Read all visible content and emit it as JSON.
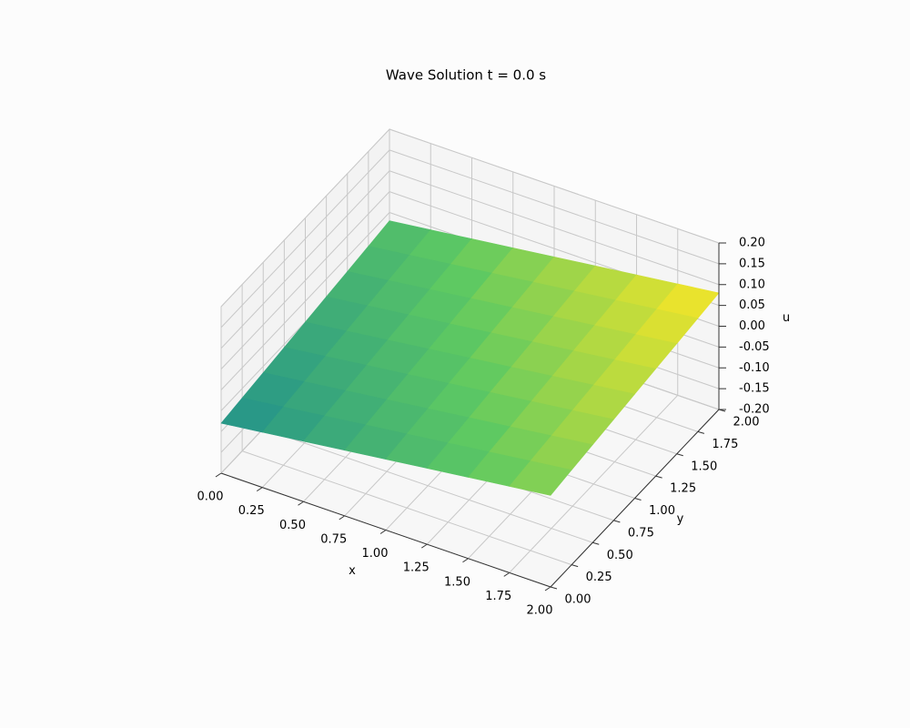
{
  "chart_data": {
    "type": "surface3d",
    "title": "Wave Solution t = 0.0 s",
    "xlabel": "x",
    "ylabel": "y",
    "zlabel": "u",
    "x": [
      0,
      0.25,
      0.5,
      0.75,
      1,
      1.25,
      1.5,
      1.75,
      2
    ],
    "y": [
      0,
      0.25,
      0.5,
      0.75,
      1,
      1.25,
      1.5,
      1.75,
      2
    ],
    "z": [
      [
        -0.08,
        -0.0675,
        -0.055,
        -0.0425,
        -0.03,
        -0.0175,
        -0.005,
        0.0075,
        0.02
      ],
      [
        -0.0725,
        -0.06,
        -0.0475,
        -0.035,
        -0.0225,
        -0.01,
        0.0025,
        0.015,
        0.0275
      ],
      [
        -0.065,
        -0.0525,
        -0.04,
        -0.0275,
        -0.015,
        -0.0025,
        0.01,
        0.0225,
        0.035
      ],
      [
        -0.0575,
        -0.045,
        -0.0325,
        -0.02,
        -0.0075,
        0.005,
        0.0175,
        0.03,
        0.0425
      ],
      [
        -0.05,
        -0.0375,
        -0.025,
        -0.0125,
        0,
        0.0125,
        0.025,
        0.0375,
        0.05
      ],
      [
        -0.0425,
        -0.03,
        -0.0175,
        -0.005,
        0.0075,
        0.02,
        0.0325,
        0.045,
        0.0575
      ],
      [
        -0.035,
        -0.0225,
        -0.01,
        0.0025,
        0.015,
        0.0275,
        0.04,
        0.0525,
        0.065
      ],
      [
        -0.0275,
        -0.015,
        -0.0025,
        0.01,
        0.0225,
        0.035,
        0.0475,
        0.06,
        0.0725
      ],
      [
        -0.02,
        -0.0075,
        0.005,
        0.0175,
        0.03,
        0.0425,
        0.055,
        0.0675,
        0.08
      ]
    ],
    "colormap": [
      "#21918c",
      "#5ec962",
      "#fde725"
    ],
    "xlim": [
      0,
      2
    ],
    "ylim": [
      0,
      2
    ],
    "zlim": [
      -0.2,
      0.2
    ],
    "xticks": [
      {
        "value": 0,
        "label": "0.00"
      },
      {
        "value": 0.25,
        "label": "0.25"
      },
      {
        "value": 0.5,
        "label": "0.50"
      },
      {
        "value": 0.75,
        "label": "0.75"
      },
      {
        "value": 1,
        "label": "1.00"
      },
      {
        "value": 1.25,
        "label": "1.25"
      },
      {
        "value": 1.5,
        "label": "1.50"
      },
      {
        "value": 1.75,
        "label": "1.75"
      },
      {
        "value": 2,
        "label": "2.00"
      }
    ],
    "yticks": [
      {
        "value": 0,
        "label": "0.00"
      },
      {
        "value": 0.25,
        "label": "0.25"
      },
      {
        "value": 0.5,
        "label": "0.50"
      },
      {
        "value": 0.75,
        "label": "0.75"
      },
      {
        "value": 1,
        "label": "1.00"
      },
      {
        "value": 1.25,
        "label": "1.25"
      },
      {
        "value": 1.5,
        "label": "1.50"
      },
      {
        "value": 1.75,
        "label": "1.75"
      },
      {
        "value": 2,
        "label": "2.00"
      }
    ],
    "zticks": [
      {
        "value": -0.2,
        "label": "-0.20"
      },
      {
        "value": -0.15,
        "label": "-0.15"
      },
      {
        "value": -0.1,
        "label": "-0.10"
      },
      {
        "value": -0.05,
        "label": "-0.05"
      },
      {
        "value": 0,
        "label": "0.00"
      },
      {
        "value": 0.05,
        "label": "0.05"
      },
      {
        "value": 0.1,
        "label": "0.10"
      },
      {
        "value": 0.15,
        "label": "0.15"
      },
      {
        "value": 0.2,
        "label": "0.20"
      }
    ],
    "grid": true
  }
}
